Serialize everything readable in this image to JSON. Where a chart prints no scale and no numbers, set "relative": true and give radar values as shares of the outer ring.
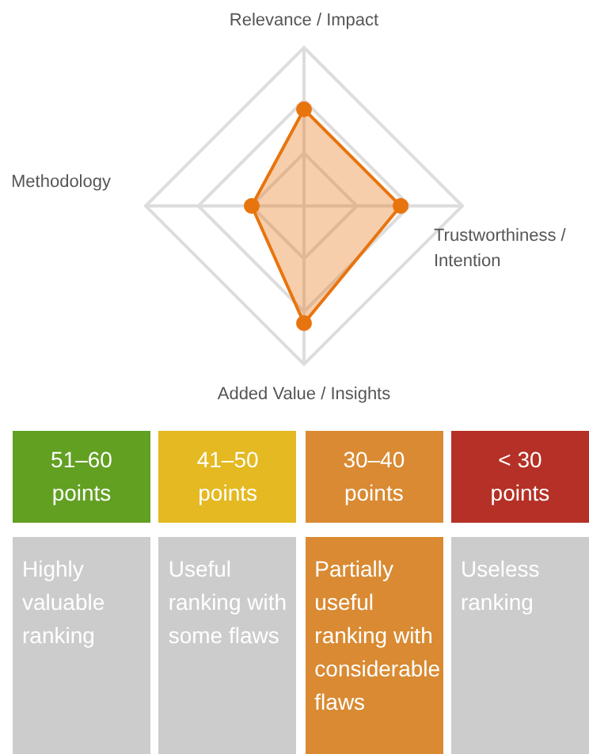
{
  "chart_data": [
    {
      "type": "radar",
      "relative": true,
      "grid": true,
      "marker": "circle",
      "categories": [
        "Relevance / Impact",
        "Trustworthiness / Intention",
        "Added Value / Insights",
        "Methodology"
      ],
      "series": [
        {
          "color": "#e8740e",
          "values": [
            0.61,
            0.61,
            0.74,
            0.33
          ]
        }
      ]
    },
    {
      "type": "other",
      "categories": [
        "51–60 points",
        "41–50 points",
        "30–40 points",
        "< 30 points"
      ],
      "colors": [
        "#62a022",
        "#e4b921",
        "#d98a32",
        "#b53026",
        "#cccccc",
        "#cccccc",
        "#d98a32",
        "#cccccc"
      ],
      "annotations": [
        "Highly valuable ranking",
        "Useful ranking with some flaws",
        "Partially useful ranking with considerable flaws",
        "Useless ranking"
      ]
    }
  ]
}
